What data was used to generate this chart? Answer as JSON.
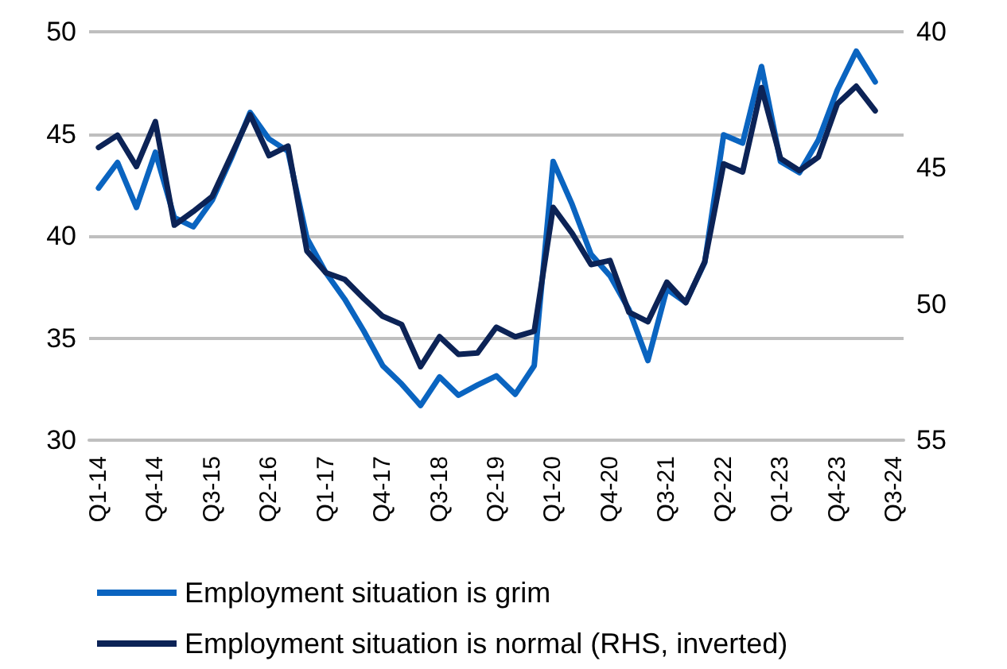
{
  "chart_data": {
    "type": "line",
    "categories": [
      "Q1-14",
      null,
      null,
      "Q4-14",
      null,
      null,
      "Q3-15",
      null,
      null,
      "Q2-16",
      null,
      null,
      "Q1-17",
      null,
      null,
      "Q4-17",
      null,
      null,
      "Q3-18",
      null,
      null,
      "Q2-19",
      null,
      null,
      "Q1-20",
      null,
      null,
      "Q4-20",
      null,
      null,
      "Q3-21",
      null,
      null,
      "Q2-22",
      null,
      null,
      "Q1-23",
      null,
      null,
      "Q4-23",
      null,
      null,
      "Q3-24"
    ],
    "series": [
      {
        "name": "Employment situation is grim",
        "color": "#0a64c0",
        "values": [
          42.35,
          43.6,
          41.4,
          44.1,
          40.9,
          40.45,
          41.75,
          43.8,
          46.05,
          44.75,
          44.15,
          39.9,
          38.2,
          36.9,
          35.35,
          33.65,
          32.75,
          31.7,
          33.1,
          32.2,
          32.7,
          33.15,
          32.25,
          33.65,
          43.65,
          41.55,
          39.1,
          38.05,
          36.4,
          33.9,
          37.4,
          36.75,
          38.7,
          44.95,
          44.55,
          48.3,
          43.65,
          43.1,
          44.7,
          47.15,
          49.05,
          47.55,
          null
        ]
      },
      {
        "name": "Employment situation is normal (RHS, inverted)",
        "color": "#0c2356",
        "axis": "y2",
        "values": [
          44.25,
          43.8,
          44.95,
          43.3,
          47.1,
          46.6,
          46.05,
          44.55,
          43.05,
          44.55,
          44.2,
          48.05,
          48.85,
          49.1,
          49.8,
          50.45,
          50.75,
          52.3,
          51.2,
          51.85,
          51.8,
          50.85,
          51.2,
          51.0,
          46.45,
          47.4,
          48.55,
          48.4,
          50.3,
          50.65,
          49.2,
          49.95,
          48.45,
          44.85,
          45.15,
          42.05,
          44.65,
          45.1,
          44.6,
          42.65,
          42.0,
          42.9,
          null
        ]
      }
    ],
    "ylim": [
      30,
      50
    ],
    "yticks": [
      30,
      35,
      40,
      45,
      50
    ],
    "y2lim": [
      55,
      40
    ],
    "y2ticks": [
      40,
      45,
      50,
      55
    ],
    "grid": "y",
    "legend": "bottom",
    "marker": "none",
    "line_style": "solid"
  }
}
